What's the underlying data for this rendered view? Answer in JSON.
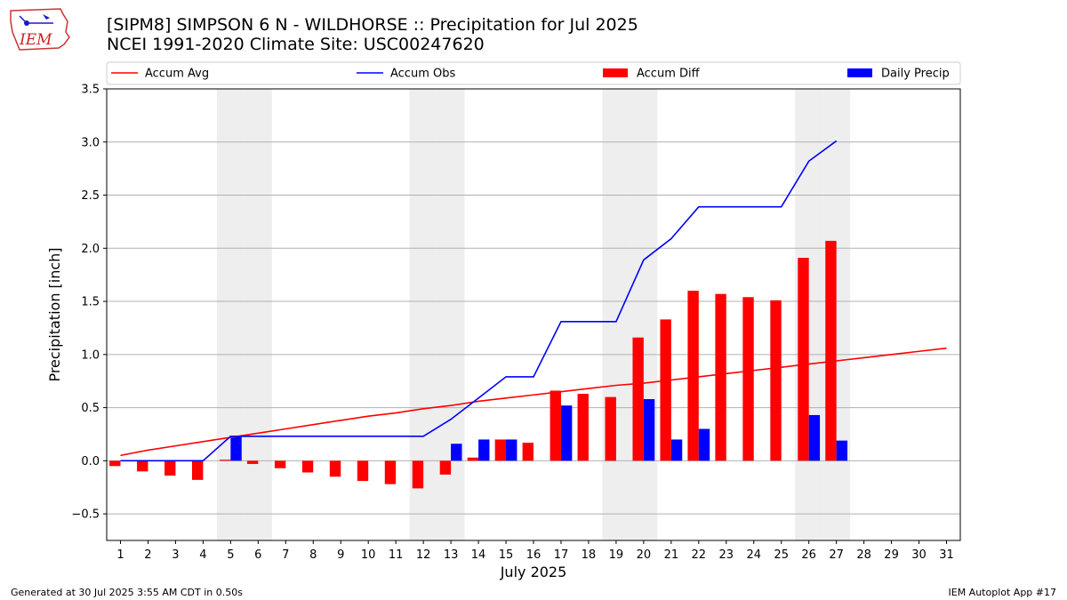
{
  "logo": {
    "text": "IEM",
    "icon": "iowa-state-outline-icon",
    "color": "#cc2222"
  },
  "title": {
    "line1": "[SIPM8] SIMPSON 6 N - WILDHORSE :: Precipitation for Jul 2025",
    "line2": "NCEI 1991-2020 Climate Site: USC00247620"
  },
  "footer": {
    "left": "Generated at 30 Jul 2025 3:55 AM CDT in 0.50s",
    "right": "IEM Autoplot App #17"
  },
  "legend": [
    {
      "label": "Accum Avg",
      "kind": "line",
      "color": "#ff0000"
    },
    {
      "label": "Accum Obs",
      "kind": "line",
      "color": "#0000ff"
    },
    {
      "label": "Accum Diff",
      "kind": "bar",
      "color": "#ff0000"
    },
    {
      "label": "Daily Precip",
      "kind": "bar",
      "color": "#0000ff"
    }
  ],
  "chart_data": {
    "type": "bar",
    "xlabel": "July 2025",
    "ylabel": "Precipitation [inch]",
    "ylim": [
      -0.75,
      3.5
    ],
    "xlim": [
      0.5,
      31.5
    ],
    "yticks": [
      -0.5,
      0.0,
      0.5,
      1.0,
      1.5,
      2.0,
      2.5,
      3.0,
      3.5
    ],
    "ytick_labels": [
      "−0.5",
      "0.0",
      "0.5",
      "1.0",
      "1.5",
      "2.0",
      "2.5",
      "3.0",
      "3.5"
    ],
    "days": [
      1,
      2,
      3,
      4,
      5,
      6,
      7,
      8,
      9,
      10,
      11,
      12,
      13,
      14,
      15,
      16,
      17,
      18,
      19,
      20,
      21,
      22,
      23,
      24,
      25,
      26,
      27,
      28,
      29,
      30,
      31
    ],
    "weekend_days": [
      5,
      6,
      12,
      13,
      19,
      20,
      26,
      27
    ],
    "grid": "horizontal",
    "legend_position": "top",
    "series": [
      {
        "name": "Accum Avg",
        "type": "line",
        "color": "#ff0000",
        "values": [
          0.05,
          0.1,
          0.14,
          0.18,
          0.22,
          0.26,
          0.3,
          0.34,
          0.38,
          0.42,
          0.45,
          0.49,
          0.52,
          0.56,
          0.59,
          0.62,
          0.65,
          0.68,
          0.71,
          0.73,
          0.76,
          0.79,
          0.82,
          0.85,
          0.88,
          0.91,
          0.94,
          0.97,
          1.0,
          1.03,
          1.06
        ]
      },
      {
        "name": "Accum Obs",
        "type": "line",
        "color": "#0000ff",
        "values": [
          0.0,
          0.0,
          0.0,
          0.0,
          0.23,
          0.23,
          0.23,
          0.23,
          0.23,
          0.23,
          0.23,
          0.23,
          0.39,
          0.59,
          0.79,
          0.79,
          1.31,
          1.31,
          1.31,
          1.89,
          2.09,
          2.39,
          2.39,
          2.39,
          2.39,
          2.82,
          3.01,
          null,
          null,
          null,
          null
        ]
      },
      {
        "name": "Accum Diff",
        "type": "bar",
        "color": "#ff0000",
        "values": [
          -0.05,
          -0.1,
          -0.14,
          -0.18,
          0.01,
          -0.03,
          -0.07,
          -0.11,
          -0.15,
          -0.19,
          -0.22,
          -0.26,
          -0.13,
          0.03,
          0.2,
          0.17,
          0.66,
          0.63,
          0.6,
          1.16,
          1.33,
          1.6,
          1.57,
          1.54,
          1.51,
          1.91,
          2.07,
          null,
          null,
          null,
          null
        ]
      },
      {
        "name": "Daily Precip",
        "type": "bar",
        "color": "#0000ff",
        "values": [
          0.0,
          0.0,
          0.0,
          0.0,
          0.23,
          0.0,
          0.0,
          0.0,
          0.0,
          0.0,
          0.0,
          0.0,
          0.16,
          0.2,
          0.2,
          0.0,
          0.52,
          0.0,
          0.0,
          0.58,
          0.2,
          0.3,
          0.0,
          0.0,
          0.0,
          0.43,
          0.19,
          null,
          null,
          null,
          null
        ]
      }
    ]
  }
}
